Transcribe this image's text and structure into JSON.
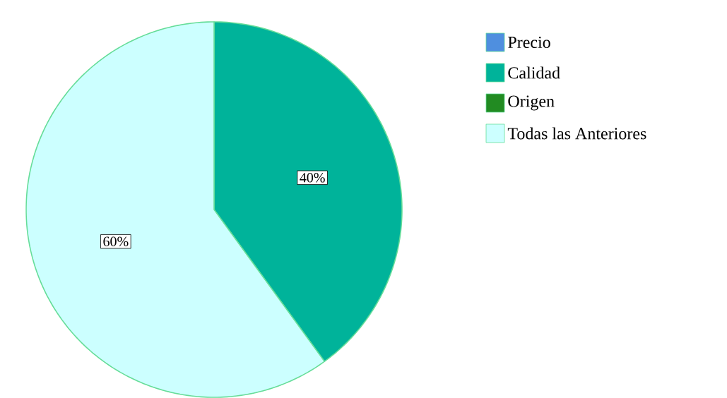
{
  "chart_data": {
    "type": "pie",
    "categories": [
      "Precio",
      "Calidad",
      "Origen",
      "Todas las Anteriores"
    ],
    "values": [
      0,
      40,
      0,
      60
    ],
    "colors": [
      "#4f8fdf",
      "#00b39a",
      "#228b22",
      "#ccffff"
    ],
    "value_labels": [
      null,
      "40%",
      null,
      "60%"
    ],
    "legend": "top right"
  }
}
